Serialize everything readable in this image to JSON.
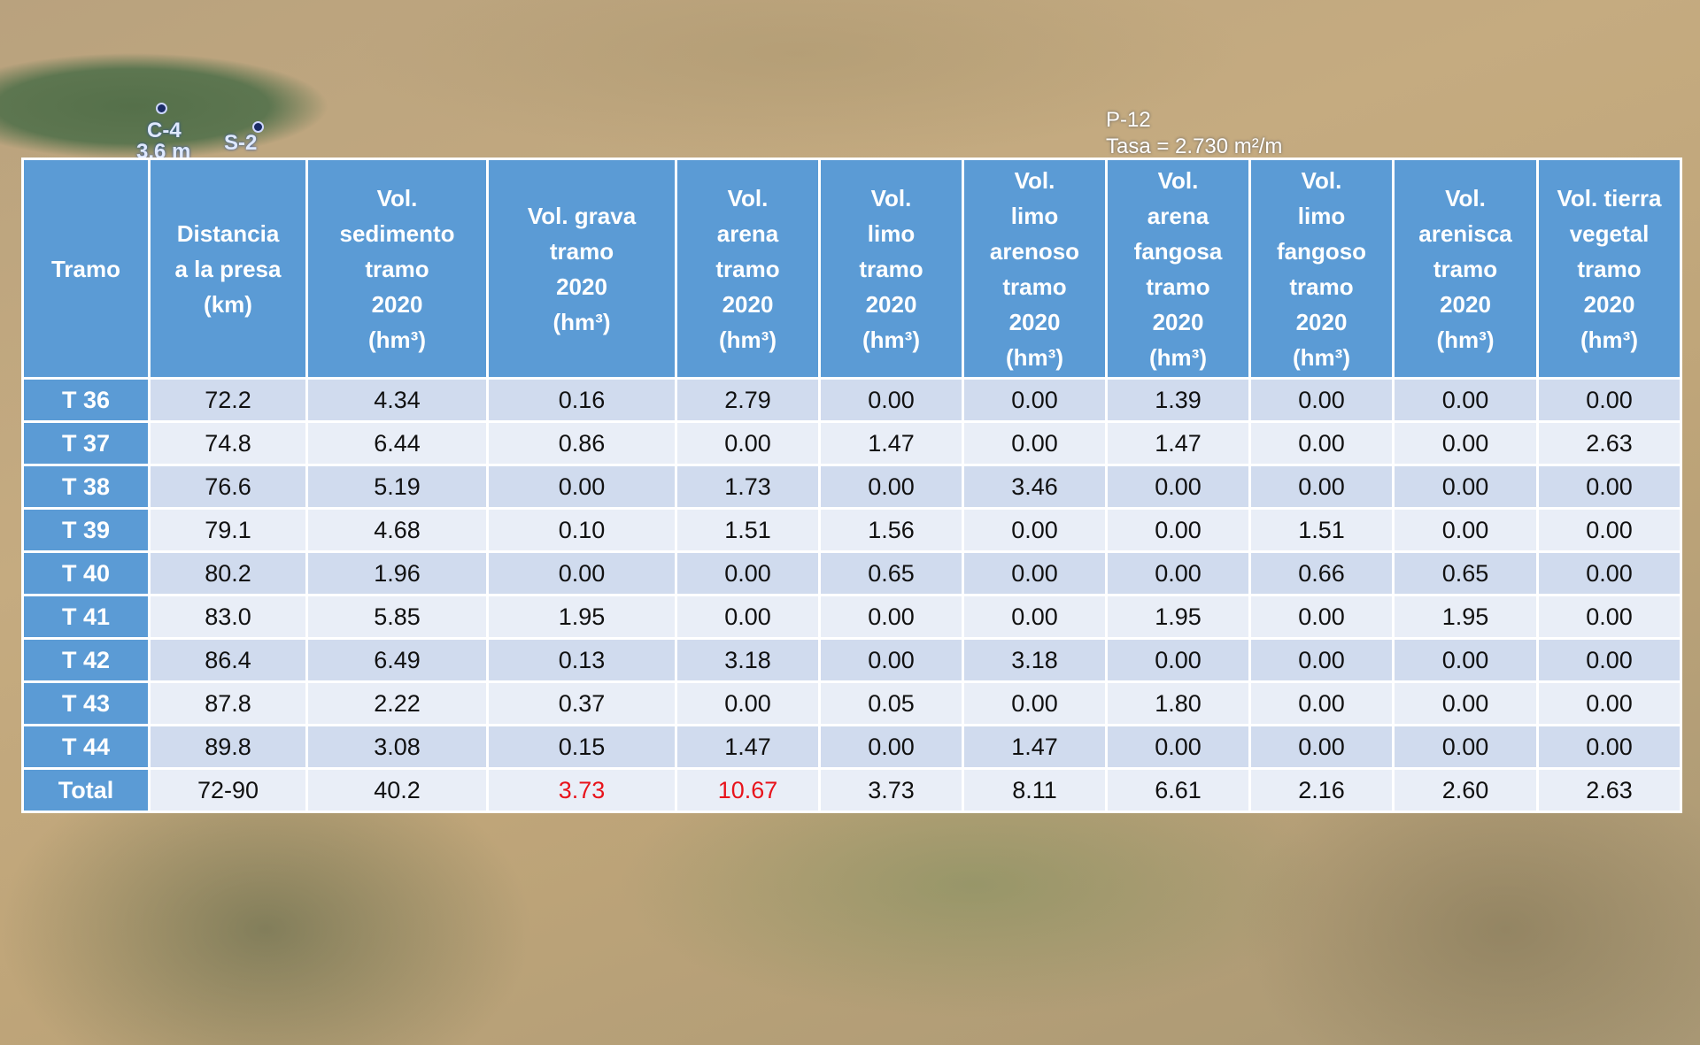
{
  "map_labels": {
    "c4": "C-4",
    "c4_depth": "3.6 m",
    "s2": "S-2",
    "p12": "P-12",
    "tasa": "Tasa = 2.730 m²/m"
  },
  "table": {
    "header": [
      [
        "Tramo"
      ],
      [
        "Distancia",
        "a la presa",
        "(km)"
      ],
      [
        "Vol.",
        "sedimento",
        "tramo",
        "2020",
        "(hm³)"
      ],
      [
        "Vol. grava",
        "tramo",
        "2020",
        "(hm³)"
      ],
      [
        "Vol.",
        "arena",
        "tramo",
        "2020",
        "(hm³)"
      ],
      [
        "Vol.",
        "limo",
        "tramo",
        "2020",
        "(hm³)"
      ],
      [
        "Vol.",
        "limo",
        "arenoso",
        "tramo",
        "2020",
        "(hm³)"
      ],
      [
        "Vol.",
        "arena",
        "fangosa",
        "tramo",
        "2020",
        "(hm³)"
      ],
      [
        "Vol.",
        "limo",
        "fangoso",
        "tramo",
        "2020",
        "(hm³)"
      ],
      [
        "Vol.",
        "arenisca",
        "tramo",
        "2020",
        "(hm³)"
      ],
      [
        "Vol. tierra",
        "vegetal",
        "tramo",
        "2020",
        "(hm³)"
      ]
    ],
    "rows": [
      [
        "T 36",
        "72.2",
        "4.34",
        "0.16",
        "2.79",
        "0.00",
        "0.00",
        "1.39",
        "0.00",
        "0.00",
        "0.00"
      ],
      [
        "T 37",
        "74.8",
        "6.44",
        "0.86",
        "0.00",
        "1.47",
        "0.00",
        "1.47",
        "0.00",
        "0.00",
        "2.63"
      ],
      [
        "T 38",
        "76.6",
        "5.19",
        "0.00",
        "1.73",
        "0.00",
        "3.46",
        "0.00",
        "0.00",
        "0.00",
        "0.00"
      ],
      [
        "T 39",
        "79.1",
        "4.68",
        "0.10",
        "1.51",
        "1.56",
        "0.00",
        "0.00",
        "1.51",
        "0.00",
        "0.00"
      ],
      [
        "T 40",
        "80.2",
        "1.96",
        "0.00",
        "0.00",
        "0.65",
        "0.00",
        "0.00",
        "0.66",
        "0.65",
        "0.00"
      ],
      [
        "T 41",
        "83.0",
        "5.85",
        "1.95",
        "0.00",
        "0.00",
        "0.00",
        "1.95",
        "0.00",
        "1.95",
        "0.00"
      ],
      [
        "T 42",
        "86.4",
        "6.49",
        "0.13",
        "3.18",
        "0.00",
        "3.18",
        "0.00",
        "0.00",
        "0.00",
        "0.00"
      ],
      [
        "T 43",
        "87.8",
        "2.22",
        "0.37",
        "0.00",
        "0.05",
        "0.00",
        "1.80",
        "0.00",
        "0.00",
        "0.00"
      ],
      [
        "T 44",
        "89.8",
        "3.08",
        "0.15",
        "1.47",
        "0.00",
        "1.47",
        "0.00",
        "0.00",
        "0.00",
        "0.00"
      ],
      [
        "Total",
        "72-90",
        "40.2",
        {
          "text": "3.73",
          "color": "#e8141c"
        },
        {
          "text": "10.67",
          "color": "#e8141c"
        },
        "3.73",
        "8.11",
        "6.61",
        "2.16",
        "2.60",
        "2.63"
      ]
    ]
  }
}
